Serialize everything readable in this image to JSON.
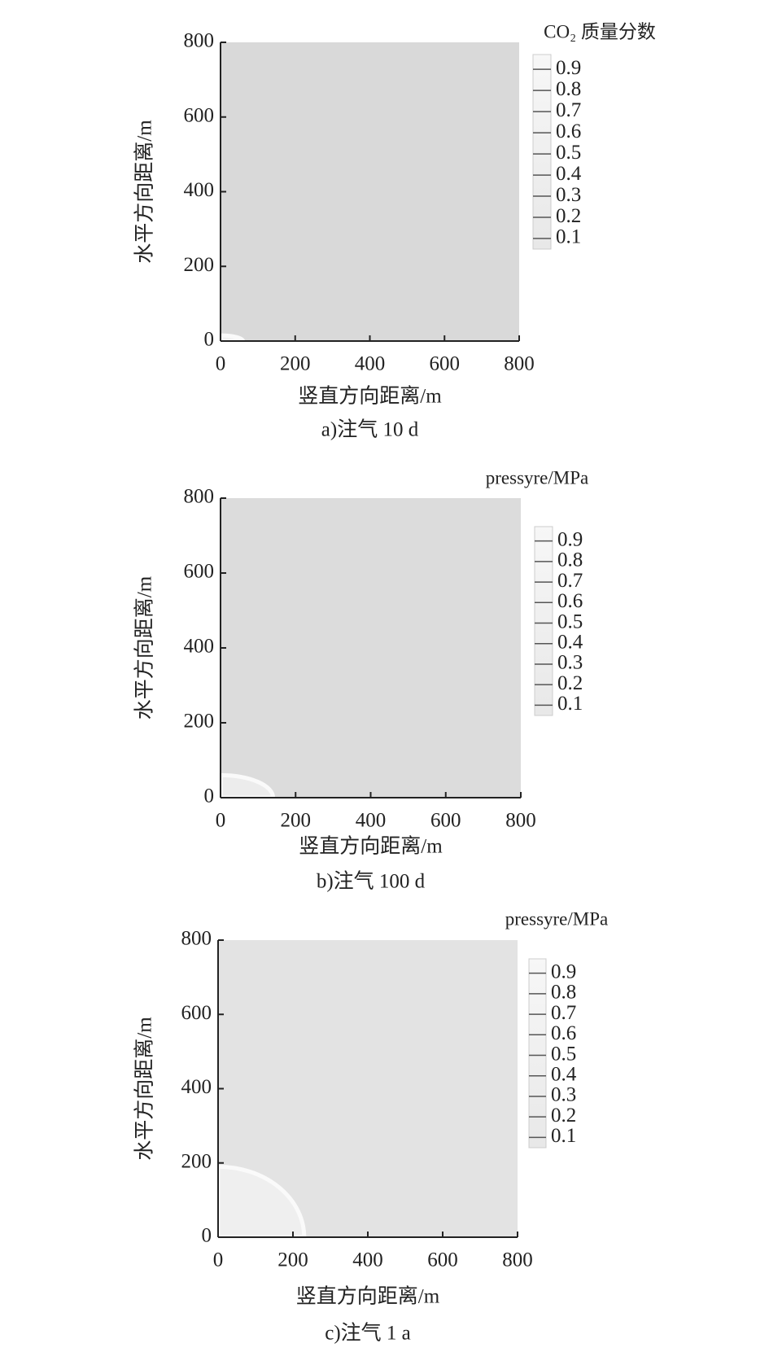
{
  "chart_data": [
    {
      "type": "contour",
      "title": "CO₂ 质量分数",
      "caption": "a)注气 10 d",
      "xlabel": "竖直方向距离/m",
      "ylabel": "水平方向距离/m",
      "xlim": [
        0,
        800
      ],
      "ylim": [
        0,
        800
      ],
      "xticks": [
        0,
        200,
        400,
        600,
        800
      ],
      "yticks": [
        0,
        200,
        400,
        600,
        800
      ],
      "colorbar_lim": [
        0.05,
        0.97
      ],
      "colorbar_ticks": [
        0.1,
        0.2,
        0.3,
        0.4,
        0.5,
        0.6,
        0.7,
        0.8,
        0.9
      ],
      "background_color": "#d9d9d9",
      "front_color": "#eeeeee",
      "plume": {
        "x": 60,
        "y": 15
      }
    },
    {
      "type": "contour",
      "title": "pressyre/MPa",
      "caption": "b)注气 100 d",
      "xlabel": "竖直方向距离/m",
      "ylabel": "水平方向距离/m",
      "xlim": [
        0,
        800
      ],
      "ylim": [
        0,
        800
      ],
      "xticks": [
        0,
        200,
        400,
        600,
        800
      ],
      "yticks": [
        0,
        200,
        400,
        600,
        800
      ],
      "colorbar_lim": [
        0.05,
        0.97
      ],
      "colorbar_ticks": [
        0.1,
        0.2,
        0.3,
        0.4,
        0.5,
        0.6,
        0.7,
        0.8,
        0.9
      ],
      "background_color": "#dcdcdc",
      "front_color": "#ececec",
      "plume": {
        "x": 140,
        "y": 60
      }
    },
    {
      "type": "contour",
      "title": "pressyre/MPa",
      "caption": "c)注气 1 a",
      "xlabel": "竖直方向距离/m",
      "ylabel": "水平方向距离/m",
      "xlim": [
        0,
        800
      ],
      "ylim": [
        0,
        800
      ],
      "xticks": [
        0,
        200,
        400,
        600,
        800
      ],
      "yticks": [
        0,
        200,
        400,
        600,
        800
      ],
      "colorbar_lim": [
        0.05,
        0.97
      ],
      "colorbar_ticks": [
        0.1,
        0.2,
        0.3,
        0.4,
        0.5,
        0.6,
        0.7,
        0.8,
        0.9
      ],
      "background_color": "#e3e3e3",
      "front_color": "#efefef",
      "plume": {
        "x": 230,
        "y": 190
      }
    }
  ]
}
